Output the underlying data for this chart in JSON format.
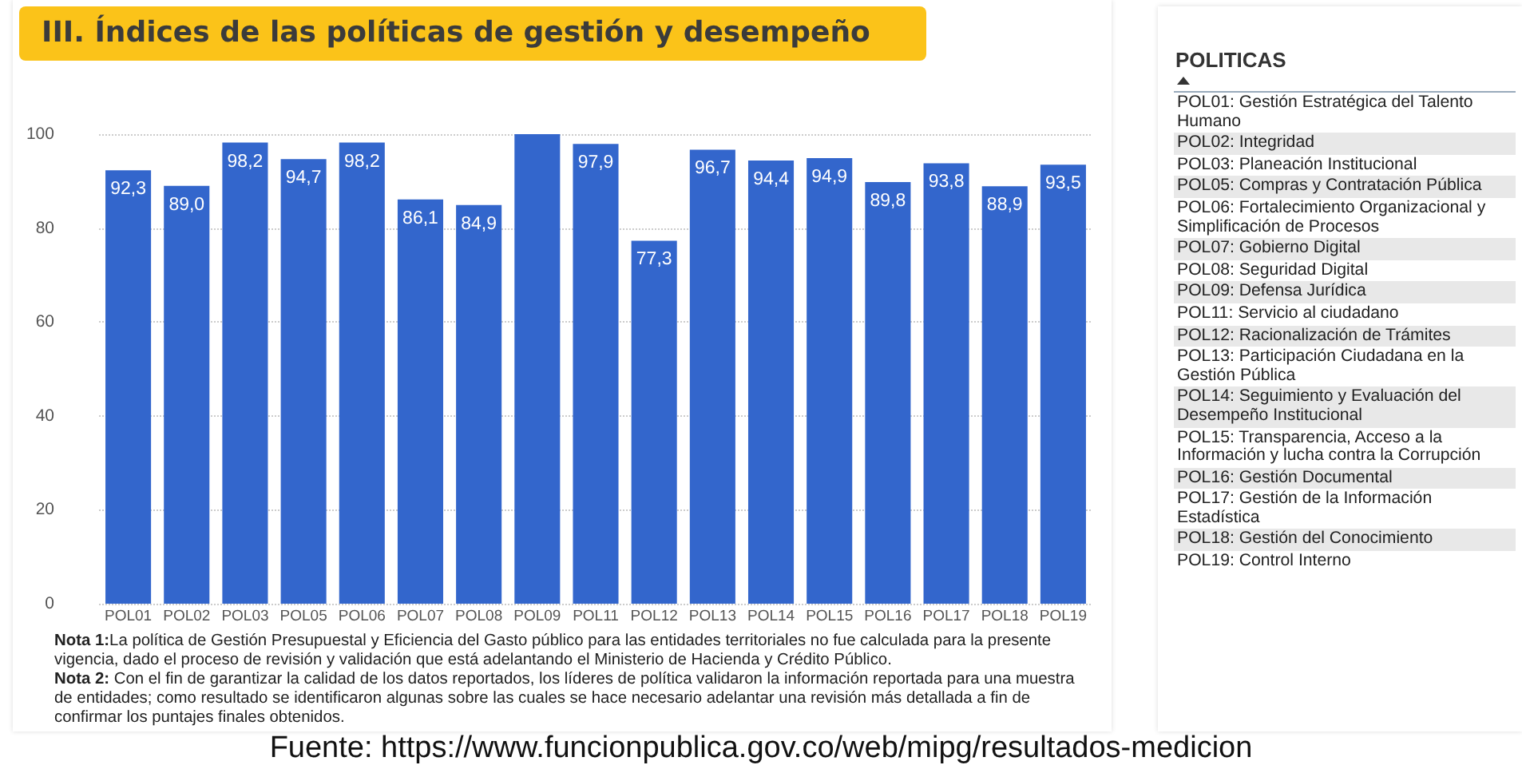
{
  "chart_data": [
    {
      "type": "bar",
      "title": "III. Índices de las políticas de gestión y desempeño",
      "categories": [
        "POL01",
        "POL02",
        "POL03",
        "POL05",
        "POL06",
        "POL07",
        "POL08",
        "POL09",
        "POL11",
        "POL12",
        "POL13",
        "POL14",
        "POL15",
        "POL16",
        "POL17",
        "POL18",
        "POL19"
      ],
      "values": [
        92.3,
        89.0,
        98.2,
        94.7,
        98.2,
        86.1,
        84.9,
        100,
        97.9,
        77.3,
        96.7,
        94.4,
        94.9,
        89.8,
        93.8,
        88.9,
        93.5
      ],
      "value_labels": [
        "92,3",
        "89,0",
        "98,2",
        "94,7",
        "98,2",
        "86,1",
        "84,9",
        null,
        "97,9",
        "77,3",
        "96,7",
        "94,4",
        "94,9",
        "89,8",
        "93,8",
        "88,9",
        "93,5"
      ],
      "color": "#3366cc",
      "ylim": [
        0,
        100
      ],
      "yticks": [
        0,
        20,
        40,
        60,
        80,
        100
      ],
      "grid": "y",
      "annotations": [
        "Nota 1:La política de Gestión Presupuestal y Eficiencia del Gasto público para las entidades territoriales no fue calculada para la presente vigencia, dado el proceso de revisión y validación que está adelantando el Ministerio de Hacienda y Crédito Público.",
        "Nota 2: Con el fin de garantizar la calidad de los datos reportados, los líderes de política validaron la información reportada para una muestra de entidades; como resultado se identificaron algunas sobre las cuales se hace necesario adelantar una revisión más detallada a fin de confirmar los puntajes finales obtenidos.",
        "Fuente: https://www.funcionpublica.gov.co/web/mipg/resultados-medicion"
      ]
    },
    {
      "type": "other",
      "title": "POLITICAS",
      "annotations": [
        "POL01: Gestión Estratégica del Talento Humano",
        "POL02: Integridad",
        "POL03: Planeación Institucional",
        "POL05: Compras y Contratación Pública",
        "POL06: Fortalecimiento Organizacional y Simplificación de Procesos",
        "POL07: Gobierno Digital",
        "POL08: Seguridad Digital",
        "POL09: Defensa Jurídica",
        "POL11: Servicio al ciudadano",
        "POL12: Racionalización de Trámites",
        "POL13: Participación Ciudadana en la Gestión Pública",
        "POL14: Seguimiento y Evaluación del Desempeño Institucional",
        "POL15: Transparencia, Acceso a la Información y lucha contra la Corrupción",
        "POL16: Gestión Documental",
        "POL17: Gestión de la Información Estadística",
        "POL18: Gestión del Conocimiento",
        "POL19: Control Interno"
      ]
    }
  ]
}
